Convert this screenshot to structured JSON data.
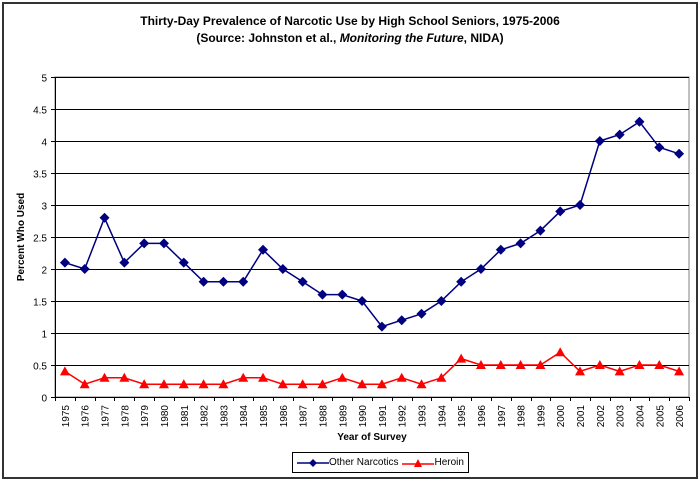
{
  "chart_data": {
    "type": "line",
    "title": "Thirty-Day Prevalence of Narcotic Use by High School Seniors, 1975-2006",
    "subtitle_parts": {
      "prefix": "(Source:  Johnston et al., ",
      "italic": "Monitoring the Future",
      "suffix": ", NIDA)"
    },
    "xlabel": "Year of Survey",
    "ylabel": "Percent Who Used",
    "ylim": [
      0,
      5
    ],
    "yticks": [
      "0",
      "0.5",
      "1",
      "1.5",
      "2",
      "2.5",
      "3",
      "3.5",
      "4",
      "4.5",
      "5"
    ],
    "grid": true,
    "legend_position": "bottom",
    "categories": [
      "1975",
      "1976",
      "1977",
      "1978",
      "1979",
      "1980",
      "1981",
      "1982",
      "1983",
      "1984",
      "1985",
      "1986",
      "1987",
      "1988",
      "1989",
      "1990",
      "1991",
      "1992",
      "1993",
      "1994",
      "1995",
      "1996",
      "1997",
      "1998",
      "1999",
      "2000",
      "2001",
      "2002",
      "2003",
      "2004",
      "2005",
      "2006"
    ],
    "series": [
      {
        "name": "Other Narcotics",
        "color": "#000080",
        "marker": "diamond",
        "values": [
          2.1,
          2.0,
          2.8,
          2.1,
          2.4,
          2.4,
          2.1,
          1.8,
          1.8,
          1.8,
          2.3,
          2.0,
          1.8,
          1.6,
          1.6,
          1.5,
          1.1,
          1.2,
          1.3,
          1.5,
          1.8,
          2.0,
          2.3,
          2.4,
          2.6,
          2.9,
          3.0,
          4.0,
          4.1,
          4.3,
          3.9,
          3.8
        ]
      },
      {
        "name": "Heroin",
        "color": "#ff0000",
        "marker": "triangle",
        "values": [
          0.4,
          0.2,
          0.3,
          0.3,
          0.2,
          0.2,
          0.2,
          0.2,
          0.2,
          0.3,
          0.3,
          0.2,
          0.2,
          0.2,
          0.3,
          0.2,
          0.2,
          0.3,
          0.2,
          0.3,
          0.6,
          0.5,
          0.5,
          0.5,
          0.5,
          0.7,
          0.4,
          0.5,
          0.4,
          0.5,
          0.5,
          0.4
        ]
      }
    ]
  }
}
